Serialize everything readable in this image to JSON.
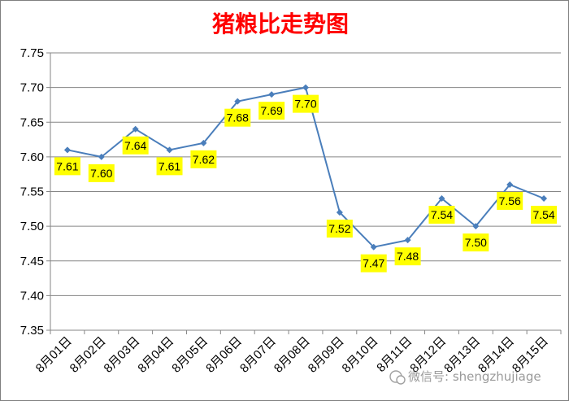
{
  "chart_data": {
    "type": "line",
    "title": "猪粮比走势图",
    "xlabel": "",
    "ylabel": "",
    "categories": [
      "8月01日",
      "8月02日",
      "8月03日",
      "8月04日",
      "8月05日",
      "8月06日",
      "8月07日",
      "8月08日",
      "8月09日",
      "8月10日",
      "8月11日",
      "8月12日",
      "8月13日",
      "8月14日",
      "8月15日"
    ],
    "series": [
      {
        "values": [
          7.61,
          7.6,
          7.64,
          7.61,
          7.62,
          7.68,
          7.69,
          7.7,
          7.52,
          7.47,
          7.48,
          7.54,
          7.5,
          7.56,
          7.54
        ]
      }
    ],
    "data_labels": [
      "7.61",
      "7.60",
      "7.64",
      "7.61",
      "7.62",
      "7.68",
      "7.69",
      "7.70",
      "7.52",
      "7.47",
      "7.48",
      "7.54",
      "7.50",
      "7.56",
      "7.54"
    ],
    "ylim": [
      7.35,
      7.75
    ],
    "yticks": [
      "7.35",
      "7.40",
      "7.45",
      "7.50",
      "7.55",
      "7.60",
      "7.65",
      "7.70",
      "7.75"
    ],
    "grid": true,
    "legend": "none",
    "colors": {
      "line": "#4a7ebb",
      "label_bg": "#ffff00",
      "title": "#ff0000",
      "grid": "#868686"
    }
  },
  "watermark": {
    "text": "微信号: shengzhujiage"
  }
}
